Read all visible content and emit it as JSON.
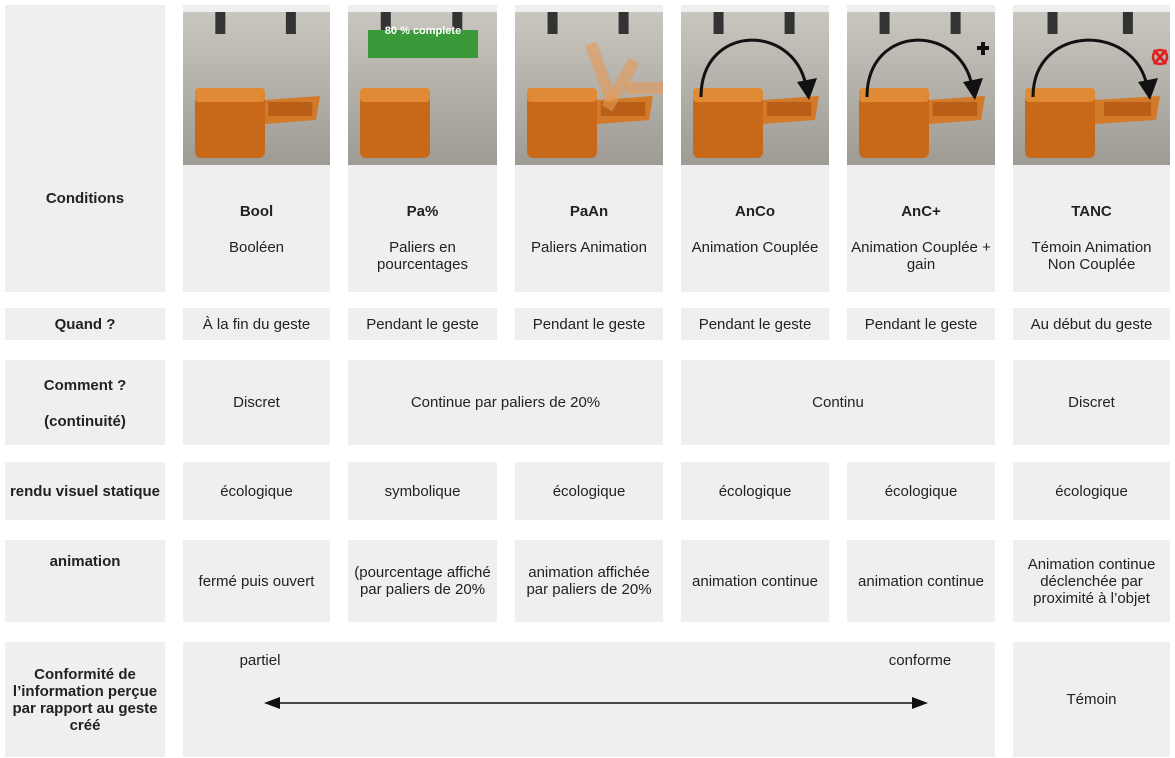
{
  "image_label": "80 % complete",
  "row_labels": {
    "conditions": "Conditions",
    "quand": "Quand ?",
    "comment": "Comment ?",
    "comment_sub": "(continuité)",
    "rendu": "rendu visuel statique",
    "animation": "animation",
    "conformite": "Conformité de l’information perçue par rapport au geste créé"
  },
  "conditions": [
    {
      "code": "Bool",
      "name": "Booléen"
    },
    {
      "code": "Pa%",
      "name": "Paliers en pourcentages"
    },
    {
      "code": "PaAn",
      "name": "Paliers Animation"
    },
    {
      "code": "AnCo",
      "name": "Animation Couplée"
    },
    {
      "code": "AnC+",
      "name": "Animation Couplée + gain"
    },
    {
      "code": "TANC",
      "name": "Témoin Animation Non Couplée"
    }
  ],
  "quand": [
    "À la fin du geste",
    "Pendant le geste",
    "Pendant le geste",
    "Pendant le geste",
    "Pendant le geste",
    "Au début du geste"
  ],
  "comment": [
    "Discret",
    "Continue par paliers de 20%",
    "Continu",
    "Discret"
  ],
  "rendu": [
    "écologique",
    "symbolique",
    "écologique",
    "écologique",
    "écologique",
    "écologique"
  ],
  "animation": [
    "fermé puis ouvert",
    "(pourcentage affiché par paliers de 20%",
    "animation affichée par paliers de 20%",
    "animation continue",
    "animation continue",
    "Animation continue déclenchée par proximité à l’objet"
  ],
  "conformite": {
    "left": "partiel",
    "right": "conforme",
    "temoin": "Témoin"
  }
}
